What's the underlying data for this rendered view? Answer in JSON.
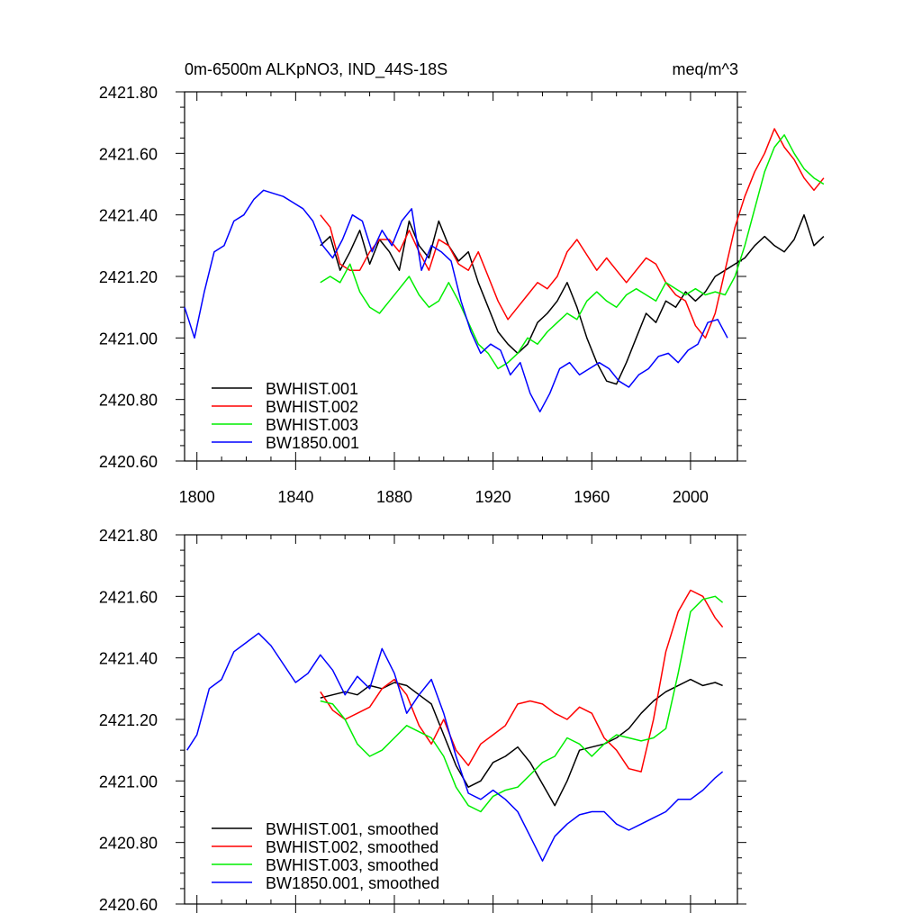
{
  "chart_data": [
    {
      "type": "line",
      "title_left": "0m-6500m ALKpNO3, IND_44S-18S",
      "title_right": "meq/m^3",
      "xlim": [
        1795,
        2019
      ],
      "ylim": [
        2420.6,
        2421.8
      ],
      "xticks": [
        1800,
        1840,
        1880,
        1920,
        1960,
        2000
      ],
      "xtick_labels": [
        "1800",
        "1840",
        "1880",
        "1920",
        "1960",
        "2000"
      ],
      "yticks": [
        2420.6,
        2420.8,
        2421.0,
        2421.2,
        2421.4,
        2421.6,
        2421.8
      ],
      "ytick_labels": [
        "2420.60",
        "2420.80",
        "2421.00",
        "2421.20",
        "2421.40",
        "2421.60",
        "2421.80"
      ],
      "series": [
        {
          "name": "BWHIST.001",
          "color": "#000000",
          "x0": 1850,
          "dx": 4,
          "values": [
            2421.3,
            2421.33,
            2421.22,
            2421.28,
            2421.35,
            2421.24,
            2421.32,
            2421.28,
            2421.22,
            2421.38,
            2421.3,
            2421.26,
            2421.38,
            2421.3,
            2421.25,
            2421.28,
            2421.18,
            2421.1,
            2421.02,
            2420.98,
            2420.95,
            2420.98,
            2421.05,
            2421.08,
            2421.12,
            2421.18,
            2421.1,
            2421.0,
            2420.92,
            2420.86,
            2420.85,
            2420.92,
            2421.0,
            2421.08,
            2421.05,
            2421.12,
            2421.1,
            2421.15,
            2421.12,
            2421.15,
            2421.2,
            2421.22,
            2421.24,
            2421.26,
            2421.3,
            2421.33,
            2421.3,
            2421.28,
            2421.32,
            2421.4,
            2421.3,
            2421.33
          ]
        },
        {
          "name": "BWHIST.002",
          "color": "#ff0000",
          "x0": 1850,
          "dx": 4,
          "values": [
            2421.4,
            2421.36,
            2421.24,
            2421.22,
            2421.22,
            2421.28,
            2421.32,
            2421.32,
            2421.28,
            2421.35,
            2421.28,
            2421.22,
            2421.32,
            2421.3,
            2421.24,
            2421.22,
            2421.28,
            2421.2,
            2421.12,
            2421.06,
            2421.1,
            2421.14,
            2421.18,
            2421.16,
            2421.2,
            2421.28,
            2421.32,
            2421.27,
            2421.22,
            2421.26,
            2421.22,
            2421.18,
            2421.22,
            2421.26,
            2421.24,
            2421.18,
            2421.14,
            2421.12,
            2421.04,
            2421.0,
            2421.08,
            2421.22,
            2421.36,
            2421.46,
            2421.54,
            2421.6,
            2421.68,
            2421.62,
            2421.58,
            2421.52,
            2421.48,
            2421.52
          ]
        },
        {
          "name": "BWHIST.003",
          "color": "#00ee00",
          "x0": 1850,
          "dx": 4,
          "values": [
            2421.18,
            2421.2,
            2421.18,
            2421.24,
            2421.15,
            2421.1,
            2421.08,
            2421.12,
            2421.16,
            2421.2,
            2421.14,
            2421.1,
            2421.12,
            2421.18,
            2421.12,
            2421.05,
            2420.98,
            2420.95,
            2420.9,
            2420.92,
            2420.95,
            2421.0,
            2420.98,
            2421.02,
            2421.05,
            2421.08,
            2421.06,
            2421.12,
            2421.15,
            2421.12,
            2421.1,
            2421.14,
            2421.16,
            2421.14,
            2421.12,
            2421.18,
            2421.16,
            2421.14,
            2421.16,
            2421.14,
            2421.15,
            2421.14,
            2421.2,
            2421.3,
            2421.42,
            2421.54,
            2421.62,
            2421.66,
            2421.6,
            2421.55,
            2421.52,
            2421.5
          ]
        },
        {
          "name": "BW1850.001",
          "color": "#0000ff",
          "x0": 1795,
          "dx": 4,
          "values": [
            2421.1,
            2421.0,
            2421.15,
            2421.28,
            2421.3,
            2421.38,
            2421.4,
            2421.45,
            2421.48,
            2421.47,
            2421.46,
            2421.44,
            2421.42,
            2421.38,
            2421.3,
            2421.26,
            2421.32,
            2421.4,
            2421.38,
            2421.28,
            2421.35,
            2421.3,
            2421.38,
            2421.42,
            2421.22,
            2421.3,
            2421.28,
            2421.25,
            2421.12,
            2421.02,
            2420.95,
            2420.98,
            2420.96,
            2420.88,
            2420.92,
            2420.82,
            2420.76,
            2420.82,
            2420.9,
            2420.92,
            2420.88,
            2420.9,
            2420.92,
            2420.9,
            2420.86,
            2420.84,
            2420.88,
            2420.9,
            2420.94,
            2420.95,
            2420.92,
            2420.96,
            2420.98,
            2421.05,
            2421.06,
            2421.0
          ]
        }
      ]
    },
    {
      "type": "line",
      "xlim": [
        1795,
        2019
      ],
      "ylim": [
        2420.6,
        2421.8
      ],
      "xticks": [
        1800,
        1840,
        1880,
        1920,
        1960,
        2000
      ],
      "yticks": [
        2420.6,
        2420.8,
        2421.0,
        2421.2,
        2421.4,
        2421.6,
        2421.8
      ],
      "ytick_labels": [
        "2420.60",
        "2420.80",
        "2421.00",
        "2421.20",
        "2421.40",
        "2421.60",
        "2421.80"
      ],
      "series": [
        {
          "name": "BWHIST.001, smoothed",
          "color": "#000000",
          "x": [
            1850,
            1855,
            1860,
            1865,
            1870,
            1875,
            1880,
            1885,
            1890,
            1895,
            1900,
            1905,
            1910,
            1915,
            1920,
            1925,
            1930,
            1935,
            1940,
            1945,
            1950,
            1955,
            1960,
            1965,
            1970,
            1975,
            1980,
            1985,
            1990,
            1995,
            2000,
            2005,
            2010,
            2013
          ],
          "y": [
            2421.27,
            2421.28,
            2421.29,
            2421.28,
            2421.31,
            2421.3,
            2421.32,
            2421.31,
            2421.28,
            2421.25,
            2421.15,
            2421.05,
            2420.98,
            2421.0,
            2421.06,
            2421.08,
            2421.11,
            2421.06,
            2420.99,
            2420.92,
            2421.0,
            2421.1,
            2421.11,
            2421.12,
            2421.14,
            2421.17,
            2421.22,
            2421.26,
            2421.29,
            2421.31,
            2421.33,
            2421.31,
            2421.32,
            2421.31
          ]
        },
        {
          "name": "BWHIST.002, smoothed",
          "color": "#ff0000",
          "x": [
            1850,
            1855,
            1860,
            1865,
            1870,
            1875,
            1880,
            1885,
            1890,
            1895,
            1900,
            1905,
            1910,
            1915,
            1920,
            1925,
            1930,
            1935,
            1940,
            1945,
            1950,
            1955,
            1960,
            1965,
            1970,
            1975,
            1980,
            1985,
            1990,
            1995,
            2000,
            2005,
            2010,
            2013
          ],
          "y": [
            2421.29,
            2421.23,
            2421.2,
            2421.22,
            2421.24,
            2421.3,
            2421.33,
            2421.28,
            2421.18,
            2421.12,
            2421.2,
            2421.1,
            2421.05,
            2421.12,
            2421.15,
            2421.18,
            2421.25,
            2421.26,
            2421.25,
            2421.22,
            2421.2,
            2421.24,
            2421.22,
            2421.14,
            2421.1,
            2421.04,
            2421.03,
            2421.2,
            2421.42,
            2421.55,
            2421.62,
            2421.6,
            2421.53,
            2421.5
          ]
        },
        {
          "name": "BWHIST.003, smoothed",
          "color": "#00ee00",
          "x": [
            1850,
            1855,
            1860,
            1865,
            1870,
            1875,
            1880,
            1885,
            1890,
            1895,
            1900,
            1905,
            1910,
            1915,
            1920,
            1925,
            1930,
            1935,
            1940,
            1945,
            1950,
            1955,
            1960,
            1965,
            1970,
            1975,
            1980,
            1985,
            1990,
            1995,
            2000,
            2005,
            2010,
            2013
          ],
          "y": [
            2421.26,
            2421.25,
            2421.2,
            2421.12,
            2421.08,
            2421.1,
            2421.14,
            2421.18,
            2421.16,
            2421.14,
            2421.08,
            2420.98,
            2420.92,
            2420.9,
            2420.95,
            2420.97,
            2420.98,
            2421.02,
            2421.06,
            2421.08,
            2421.14,
            2421.12,
            2421.08,
            2421.12,
            2421.15,
            2421.14,
            2421.13,
            2421.14,
            2421.17,
            2421.35,
            2421.55,
            2421.59,
            2421.6,
            2421.58
          ]
        },
        {
          "name": "BW1850.001, smoothed",
          "color": "#0000ff",
          "x": [
            1796,
            1800,
            1805,
            1810,
            1815,
            1820,
            1825,
            1830,
            1835,
            1840,
            1845,
            1850,
            1855,
            1860,
            1865,
            1870,
            1875,
            1880,
            1885,
            1890,
            1895,
            1900,
            1905,
            1910,
            1915,
            1920,
            1925,
            1930,
            1935,
            1940,
            1945,
            1950,
            1955,
            1960,
            1965,
            1970,
            1975,
            1980,
            1985,
            1990,
            1995,
            2000,
            2005,
            2010,
            2013
          ],
          "y": [
            2421.1,
            2421.15,
            2421.3,
            2421.33,
            2421.42,
            2421.45,
            2421.48,
            2421.44,
            2421.38,
            2421.32,
            2421.35,
            2421.41,
            2421.36,
            2421.28,
            2421.34,
            2421.3,
            2421.43,
            2421.35,
            2421.22,
            2421.28,
            2421.33,
            2421.22,
            2421.08,
            2420.96,
            2420.94,
            2420.97,
            2420.94,
            2420.9,
            2420.82,
            2420.74,
            2420.82,
            2420.86,
            2420.89,
            2420.9,
            2420.9,
            2420.86,
            2420.84,
            2420.86,
            2420.88,
            2420.9,
            2420.94,
            2420.94,
            2420.97,
            2421.01,
            2421.03
          ]
        }
      ]
    }
  ]
}
